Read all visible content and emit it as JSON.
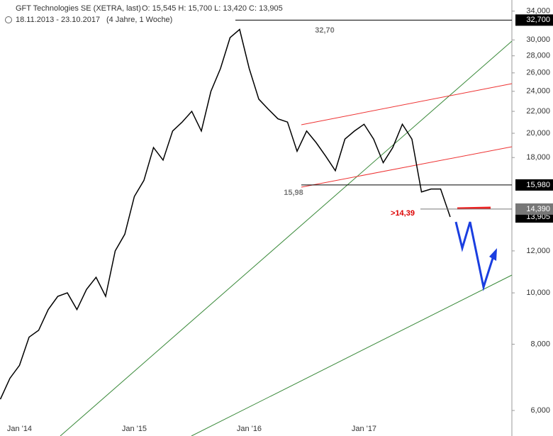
{
  "chart_data": {
    "type": "line",
    "title": "GFT Technologies SE (XETRA, last)",
    "ohlc": "O: 15,545  H: 15,700  L: 13,420  C: 13,905",
    "subtitle": "18.11.2013 - 23.10.2017",
    "period": "(4 Jahre, 1 Woche)",
    "categories": [
      null,
      null,
      "Jan '14",
      null,
      null,
      null,
      null,
      null,
      null,
      null,
      null,
      null,
      null,
      null,
      "Jan '15",
      null,
      null,
      null,
      null,
      null,
      null,
      null,
      null,
      null,
      null,
      null,
      "Jan '16",
      null,
      null,
      null,
      null,
      null,
      null,
      null,
      null,
      null,
      null,
      null,
      "Jan '17",
      null,
      null,
      null,
      null,
      null,
      null,
      null,
      null,
      null
    ],
    "series": [
      {
        "name": "GFT Technologies SE",
        "color": "#000000",
        "values": [
          6.3,
          6.9,
          7.3,
          8.25,
          8.5,
          9.3,
          9.85,
          10.0,
          9.3,
          10.15,
          10.7,
          9.85,
          12.0,
          12.9,
          15.2,
          16.3,
          18.8,
          17.8,
          20.2,
          21.0,
          22.0,
          20.2,
          24.0,
          26.5,
          30.3,
          31.4,
          26.5,
          23.2,
          22.2,
          21.3,
          21.0,
          18.5,
          20.2,
          19.2,
          18.1,
          17.0,
          19.5,
          20.2,
          20.8,
          19.5,
          17.6,
          18.8,
          20.8,
          19.5,
          15.5,
          15.7,
          15.7,
          13.905
        ]
      }
    ],
    "log_scale": true,
    "ylim": [
      5.8,
      34.6
    ],
    "yticks": [
      {
        "value": 6,
        "label": "6,000"
      },
      {
        "value": 8,
        "label": "8,000"
      },
      {
        "value": 10,
        "label": "10,000"
      },
      {
        "value": 12,
        "label": "12,000"
      },
      {
        "value": 18,
        "label": "18,000"
      },
      {
        "value": 20,
        "label": "20,000"
      },
      {
        "value": 22,
        "label": "22,000"
      },
      {
        "value": 24,
        "label": "24,000"
      },
      {
        "value": 26,
        "label": "26,000"
      },
      {
        "value": 28,
        "label": "28,000"
      },
      {
        "value": 30,
        "label": "30,000"
      },
      {
        "value": 34,
        "label": "34,000"
      }
    ],
    "levels": [
      {
        "value": 32.7,
        "label": "32,70",
        "badge": "32,700",
        "color": "#000000"
      },
      {
        "value": 15.98,
        "label": "15,98",
        "badge": "15,980",
        "color": "#000000"
      },
      {
        "value": 14.39,
        "label": ">14,39",
        "badge": "14,390",
        "color": "#777777"
      }
    ],
    "last": {
      "value": 13.905,
      "label": "13,905"
    }
  }
}
